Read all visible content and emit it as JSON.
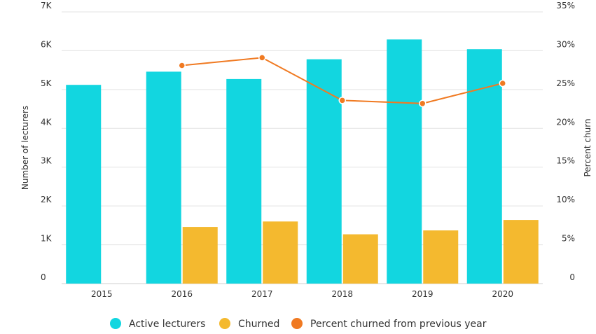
{
  "chart_data": {
    "type": "bar",
    "categories": [
      "2015",
      "2016",
      "2017",
      "2018",
      "2019",
      "2020"
    ],
    "series": [
      {
        "name": "Active lecturers",
        "type": "bar",
        "axis": "left",
        "color": "#12d6e0",
        "values": [
          5120,
          5460,
          5270,
          5780,
          6290,
          6040
        ]
      },
      {
        "name": "Churned",
        "type": "bar",
        "axis": "left",
        "color": "#f4b92f",
        "values": [
          null,
          1460,
          1600,
          1270,
          1370,
          1640
        ]
      },
      {
        "name": "Percent churned from previous year",
        "type": "line",
        "axis": "right",
        "color": "#f07a22",
        "values": [
          null,
          28.1,
          29.1,
          23.6,
          23.2,
          25.8
        ]
      }
    ],
    "y_left": {
      "label": "Number of lecturers",
      "ylim": [
        0,
        7000
      ],
      "ticks": [
        0,
        1000,
        2000,
        3000,
        4000,
        5000,
        6000,
        7000
      ],
      "tick_labels": [
        "0",
        "1K",
        "2K",
        "3K",
        "4K",
        "5K",
        "6K",
        "7K"
      ]
    },
    "y_right": {
      "label": "Percent churn",
      "ylim": [
        0,
        35
      ],
      "ticks": [
        0,
        5,
        10,
        15,
        20,
        25,
        30,
        35
      ],
      "tick_labels": [
        "0",
        "5%",
        "10%",
        "15%",
        "20%",
        "25%",
        "30%",
        "35%"
      ]
    },
    "grid": true,
    "legend_position": "bottom"
  }
}
